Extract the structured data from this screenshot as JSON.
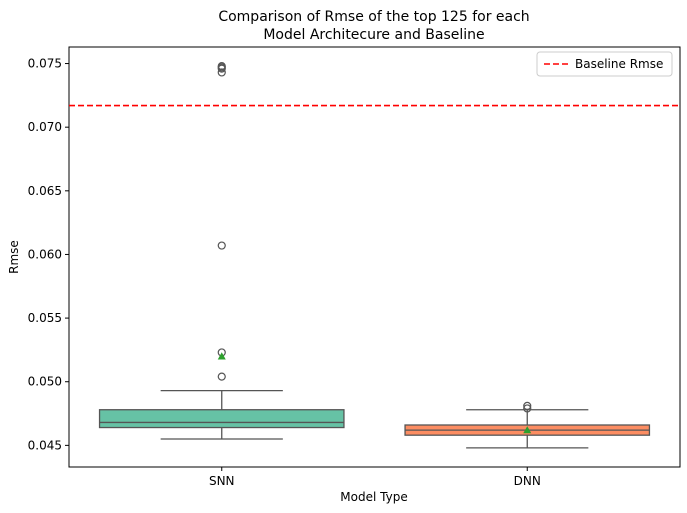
{
  "chart_data": {
    "type": "box",
    "title_lines": [
      "Comparison of Rmse of the top 125 for each",
      "Model Architecure and Baseline"
    ],
    "xlabel": "Model Type",
    "ylabel": "Rmse",
    "categories": [
      "SNN",
      "DNN"
    ],
    "ylim": [
      0.0433,
      0.0763
    ],
    "yticks": [
      0.045,
      0.05,
      0.055,
      0.06,
      0.065,
      0.07,
      0.075
    ],
    "ytick_labels": [
      "0.045",
      "0.050",
      "0.055",
      "0.060",
      "0.065",
      "0.070",
      "0.075"
    ],
    "boxes": [
      {
        "category": "SNN",
        "color": "#66c2a5",
        "whisker_low": 0.0455,
        "q1": 0.0464,
        "median": 0.0468,
        "q3": 0.0478,
        "whisker_high": 0.0493,
        "mean": 0.052,
        "outliers": [
          0.0504,
          0.0523,
          0.0607,
          0.0743,
          0.0746,
          0.0747,
          0.0748
        ]
      },
      {
        "category": "DNN",
        "color": "#fc8d62",
        "whisker_low": 0.0448,
        "q1": 0.0458,
        "median": 0.0462,
        "q3": 0.0466,
        "whisker_high": 0.0478,
        "mean": 0.0462,
        "outliers": [
          0.0479,
          0.0481
        ]
      }
    ],
    "baseline": {
      "value": 0.0717,
      "label": "Baseline Rmse",
      "color": "#ff0000",
      "style": "dashed"
    },
    "legend_position": "top-right",
    "grid": false,
    "mean_marker_color": "#2ca02c"
  }
}
